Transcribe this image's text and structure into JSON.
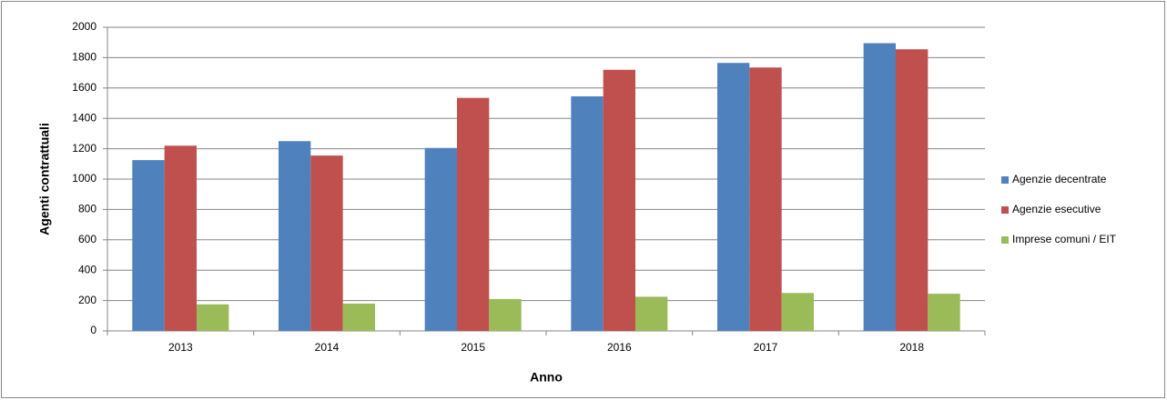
{
  "chart_data": {
    "type": "bar",
    "xlabel": "Anno",
    "ylabel": "Agenti contrattuali",
    "categories": [
      "2013",
      "2014",
      "2015",
      "2016",
      "2017",
      "2018"
    ],
    "series": [
      {
        "name": "Agenzie decentrate",
        "color": "#4f81bd",
        "values": [
          1125,
          1250,
          1205,
          1545,
          1765,
          1895
        ]
      },
      {
        "name": "Agenzie esecutive",
        "color": "#c0504d",
        "values": [
          1220,
          1155,
          1535,
          1720,
          1735,
          1855
        ]
      },
      {
        "name": "Imprese comuni / EIT",
        "color": "#9bbb59",
        "values": [
          175,
          180,
          210,
          225,
          250,
          245
        ]
      }
    ],
    "ylim": [
      0,
      2000
    ],
    "yticks": [
      0,
      200,
      400,
      600,
      800,
      1000,
      1200,
      1400,
      1600,
      1800,
      2000
    ],
    "grid": true,
    "legend": "right"
  }
}
